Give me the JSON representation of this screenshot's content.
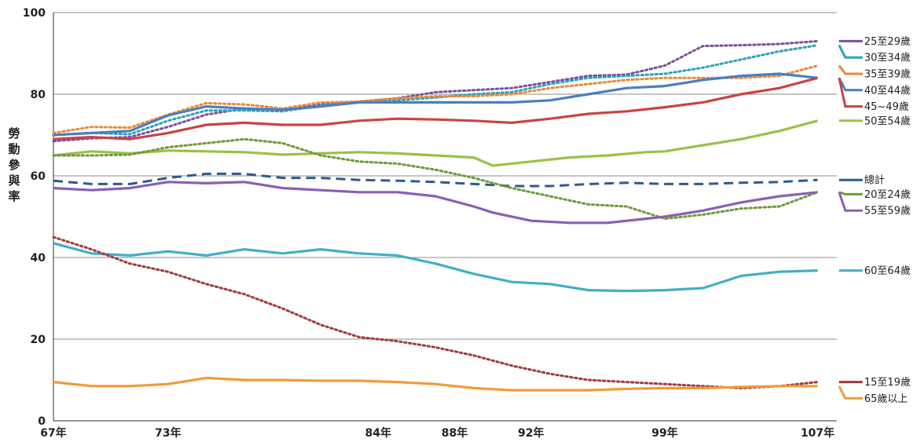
{
  "chart_data": {
    "type": "line",
    "ylabel": "勞動參與率",
    "ylim": [
      0,
      100
    ],
    "yticks": [
      0,
      20,
      40,
      60,
      80,
      100
    ],
    "xlim": [
      67,
      108
    ],
    "xticks": [
      {
        "value": 67,
        "label": "67年"
      },
      {
        "value": 73,
        "label": "73年"
      },
      {
        "value": 84,
        "label": "84年"
      },
      {
        "value": 88,
        "label": "88年"
      },
      {
        "value": 92,
        "label": "92年"
      },
      {
        "value": 99,
        "label": "99年"
      },
      {
        "value": 107,
        "label": "107年"
      }
    ],
    "grid": true,
    "legend": "right",
    "series": [
      {
        "name": "25至29歲",
        "color": "#7B4FA0",
        "style": "dotted",
        "points": [
          [
            67,
            68.5
          ],
          [
            69,
            69.2
          ],
          [
            71,
            69.5
          ],
          [
            73,
            72
          ],
          [
            75,
            75
          ],
          [
            77,
            76.5
          ],
          [
            79,
            76.2
          ],
          [
            81,
            77.5
          ],
          [
            83,
            78.2
          ],
          [
            85,
            79
          ],
          [
            87,
            80.5
          ],
          [
            89,
            81
          ],
          [
            91,
            81.5
          ],
          [
            93,
            83
          ],
          [
            95,
            84.5
          ],
          [
            97,
            84.8
          ],
          [
            99,
            87
          ],
          [
            101,
            91.8
          ],
          [
            103,
            92
          ],
          [
            105,
            92.3
          ],
          [
            107,
            93
          ]
        ]
      },
      {
        "name": "30至34歲",
        "color": "#2FA2B5",
        "style": "dotted",
        "points": [
          [
            67,
            70
          ],
          [
            69,
            70.5
          ],
          [
            71,
            70.2
          ],
          [
            73,
            73.5
          ],
          [
            75,
            76
          ],
          [
            77,
            76
          ],
          [
            79,
            75.8
          ],
          [
            81,
            77.2
          ],
          [
            83,
            78
          ],
          [
            85,
            78.5
          ],
          [
            87,
            79.2
          ],
          [
            89,
            80
          ],
          [
            91,
            80.5
          ],
          [
            93,
            82.5
          ],
          [
            95,
            84
          ],
          [
            97,
            84.5
          ],
          [
            99,
            85
          ],
          [
            101,
            86.5
          ],
          [
            103,
            88.5
          ],
          [
            105,
            90.5
          ],
          [
            107,
            92
          ]
        ]
      },
      {
        "name": "35至39歲",
        "color": "#E88A3A",
        "style": "dotted",
        "points": [
          [
            67,
            70.5
          ],
          [
            69,
            72
          ],
          [
            71,
            71.8
          ],
          [
            73,
            75
          ],
          [
            75,
            77.8
          ],
          [
            77,
            77.5
          ],
          [
            79,
            76.5
          ],
          [
            81,
            78
          ],
          [
            83,
            78.2
          ],
          [
            85,
            79
          ],
          [
            87,
            79.5
          ],
          [
            89,
            79.5
          ],
          [
            91,
            80
          ],
          [
            93,
            81.5
          ],
          [
            95,
            82.5
          ],
          [
            97,
            83.5
          ],
          [
            99,
            84
          ],
          [
            101,
            84
          ],
          [
            103,
            84
          ],
          [
            105,
            84.5
          ],
          [
            107,
            87
          ]
        ]
      },
      {
        "name": "40至44歲",
        "color": "#4A7EC2",
        "style": "solid",
        "points": [
          [
            67,
            70
          ],
          [
            69,
            70.5
          ],
          [
            71,
            71
          ],
          [
            73,
            74.8
          ],
          [
            75,
            77
          ],
          [
            77,
            76.5
          ],
          [
            79,
            76.2
          ],
          [
            81,
            77
          ],
          [
            83,
            78
          ],
          [
            85,
            78
          ],
          [
            87,
            78
          ],
          [
            89,
            78
          ],
          [
            91,
            78
          ],
          [
            93,
            78.5
          ],
          [
            95,
            80
          ],
          [
            97,
            81.5
          ],
          [
            99,
            82
          ],
          [
            101,
            83.5
          ],
          [
            103,
            84.5
          ],
          [
            105,
            85
          ],
          [
            107,
            84
          ]
        ]
      },
      {
        "name": "45~49歲",
        "color": "#C84444",
        "style": "solid",
        "points": [
          [
            67,
            69
          ],
          [
            69,
            69.5
          ],
          [
            71,
            69
          ],
          [
            73,
            70.5
          ],
          [
            75,
            72.5
          ],
          [
            77,
            73
          ],
          [
            79,
            72.5
          ],
          [
            81,
            72.5
          ],
          [
            83,
            73.5
          ],
          [
            85,
            74
          ],
          [
            87,
            73.8
          ],
          [
            89,
            73.5
          ],
          [
            91,
            73
          ],
          [
            93,
            74
          ],
          [
            95,
            75.2
          ],
          [
            97,
            75.8
          ],
          [
            99,
            76.8
          ],
          [
            101,
            78
          ],
          [
            103,
            80
          ],
          [
            105,
            81.5
          ],
          [
            107,
            84
          ]
        ]
      },
      {
        "name": "50至54歲",
        "color": "#9BC04A",
        "style": "solid",
        "points": [
          [
            67,
            65
          ],
          [
            69,
            66
          ],
          [
            71,
            65.5
          ],
          [
            73,
            66.2
          ],
          [
            75,
            66
          ],
          [
            77,
            65.8
          ],
          [
            79,
            65.2
          ],
          [
            81,
            65.5
          ],
          [
            83,
            65.8
          ],
          [
            85,
            65.5
          ],
          [
            87,
            65
          ],
          [
            89,
            64.5
          ],
          [
            90,
            62.5
          ],
          [
            92,
            63.5
          ],
          [
            94,
            64.5
          ],
          [
            96,
            65
          ],
          [
            98,
            65.8
          ],
          [
            99,
            66
          ],
          [
            101,
            67.5
          ],
          [
            103,
            69
          ],
          [
            105,
            71
          ],
          [
            107,
            73.5
          ]
        ]
      },
      {
        "name": "總計",
        "color": "#2E5A8E",
        "style": "dashed",
        "points": [
          [
            67,
            58.8
          ],
          [
            69,
            58
          ],
          [
            71,
            58
          ],
          [
            73,
            59.5
          ],
          [
            75,
            60.5
          ],
          [
            77,
            60.5
          ],
          [
            79,
            59.5
          ],
          [
            81,
            59.5
          ],
          [
            83,
            59
          ],
          [
            85,
            58.8
          ],
          [
            87,
            58.5
          ],
          [
            89,
            58
          ],
          [
            91,
            57.5
          ],
          [
            93,
            57.5
          ],
          [
            95,
            58
          ],
          [
            97,
            58.3
          ],
          [
            99,
            58
          ],
          [
            101,
            58
          ],
          [
            103,
            58.3
          ],
          [
            105,
            58.5
          ],
          [
            107,
            59
          ]
        ]
      },
      {
        "name": "20至24歲",
        "color": "#6E9A3A",
        "style": "dotted",
        "points": [
          [
            67,
            65
          ],
          [
            69,
            65
          ],
          [
            71,
            65.2
          ],
          [
            73,
            67
          ],
          [
            75,
            68
          ],
          [
            77,
            69
          ],
          [
            79,
            68
          ],
          [
            81,
            65
          ],
          [
            83,
            63.5
          ],
          [
            85,
            63
          ],
          [
            87,
            61.5
          ],
          [
            89,
            59.5
          ],
          [
            91,
            57
          ],
          [
            93,
            55
          ],
          [
            95,
            53
          ],
          [
            97,
            52.5
          ],
          [
            99,
            49.5
          ],
          [
            101,
            50.5
          ],
          [
            103,
            52
          ],
          [
            105,
            52.5
          ],
          [
            107,
            56
          ]
        ]
      },
      {
        "name": "55至59歲",
        "color": "#8A5FB5",
        "style": "solid",
        "points": [
          [
            67,
            57
          ],
          [
            69,
            56.5
          ],
          [
            71,
            57
          ],
          [
            73,
            58.5
          ],
          [
            75,
            58.2
          ],
          [
            77,
            58.5
          ],
          [
            79,
            57
          ],
          [
            81,
            56.5
          ],
          [
            83,
            56
          ],
          [
            85,
            56
          ],
          [
            87,
            55
          ],
          [
            89,
            52.5
          ],
          [
            90,
            51
          ],
          [
            92,
            49
          ],
          [
            94,
            48.5
          ],
          [
            96,
            48.5
          ],
          [
            98,
            49.5
          ],
          [
            99,
            50
          ],
          [
            101,
            51.5
          ],
          [
            103,
            53.5
          ],
          [
            105,
            55
          ],
          [
            107,
            56
          ]
        ]
      },
      {
        "name": "60至64歲",
        "color": "#42AFC8",
        "style": "solid",
        "points": [
          [
            67,
            43.5
          ],
          [
            69,
            41
          ],
          [
            71,
            40.5
          ],
          [
            73,
            41.5
          ],
          [
            75,
            40.5
          ],
          [
            77,
            42
          ],
          [
            79,
            41
          ],
          [
            81,
            42
          ],
          [
            83,
            41
          ],
          [
            85,
            40.5
          ],
          [
            87,
            38.5
          ],
          [
            89,
            36
          ],
          [
            91,
            34
          ],
          [
            93,
            33.5
          ],
          [
            95,
            32
          ],
          [
            97,
            31.8
          ],
          [
            99,
            32
          ],
          [
            101,
            32.5
          ],
          [
            103,
            35.5
          ],
          [
            105,
            36.5
          ],
          [
            107,
            36.8
          ]
        ]
      },
      {
        "name": "15至19歲",
        "color": "#A33A3A",
        "style": "dotted",
        "points": [
          [
            67,
            45
          ],
          [
            69,
            42
          ],
          [
            71,
            38.5
          ],
          [
            73,
            36.5
          ],
          [
            75,
            33.5
          ],
          [
            77,
            31
          ],
          [
            79,
            27.5
          ],
          [
            81,
            23.5
          ],
          [
            83,
            20.5
          ],
          [
            85,
            19.5
          ],
          [
            87,
            18
          ],
          [
            89,
            16
          ],
          [
            91,
            13.5
          ],
          [
            93,
            11.5
          ],
          [
            95,
            10
          ],
          [
            97,
            9.5
          ],
          [
            99,
            9
          ],
          [
            101,
            8.5
          ],
          [
            103,
            8
          ],
          [
            105,
            8.5
          ],
          [
            107,
            9.5
          ]
        ]
      },
      {
        "name": "65歲以上",
        "color": "#F29A3A",
        "style": "solid",
        "points": [
          [
            67,
            9.5
          ],
          [
            69,
            8.5
          ],
          [
            71,
            8.5
          ],
          [
            73,
            9
          ],
          [
            75,
            10.5
          ],
          [
            77,
            10
          ],
          [
            79,
            10
          ],
          [
            81,
            9.8
          ],
          [
            83,
            9.8
          ],
          [
            85,
            9.5
          ],
          [
            87,
            9
          ],
          [
            89,
            8
          ],
          [
            91,
            7.5
          ],
          [
            93,
            7.5
          ],
          [
            95,
            7.5
          ],
          [
            97,
            7.8
          ],
          [
            99,
            8
          ],
          [
            101,
            8
          ],
          [
            103,
            8.3
          ],
          [
            105,
            8.5
          ],
          [
            107,
            8.5
          ]
        ]
      }
    ],
    "legend_entries": [
      {
        "series": "25至29歲",
        "y": 93,
        "label_y": 93
      },
      {
        "series": "30至34歲",
        "y": 92,
        "label_y": 89
      },
      {
        "series": "35至39歲",
        "y": 87,
        "label_y": 85
      },
      {
        "series": "40至44歲",
        "y": 84,
        "label_y": 81
      },
      {
        "series": "45~49歲",
        "y": 84,
        "label_y": 77
      },
      {
        "series": "50至54歲",
        "y": 73.5,
        "label_y": 73.5
      },
      {
        "series": "總計",
        "y": 59,
        "label_y": 59
      },
      {
        "series": "20至24歲",
        "y": 56,
        "label_y": 55.5
      },
      {
        "series": "55至59歲",
        "y": 56,
        "label_y": 51.5
      },
      {
        "series": "60至64歲",
        "y": 36.8,
        "label_y": 36.8
      },
      {
        "series": "15至19歲",
        "y": 9.5,
        "label_y": 9.5
      },
      {
        "series": "65歲以上",
        "y": 8.5,
        "label_y": 5.5
      }
    ]
  }
}
